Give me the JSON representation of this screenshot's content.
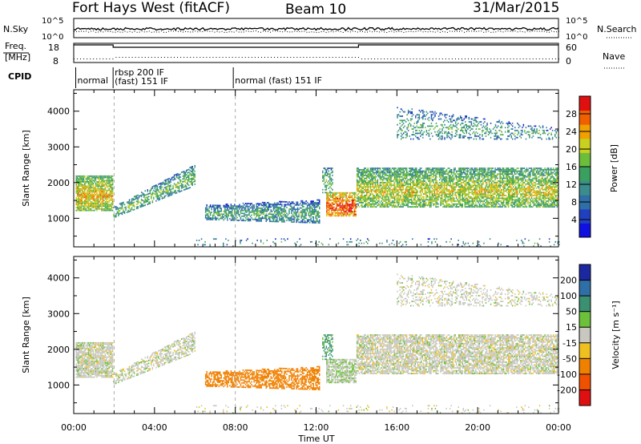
{
  "header": {
    "title": "Fort Hays West (fitACF)",
    "beam": "Beam 10",
    "date": "31/Mar/2015"
  },
  "nsky_panel": {
    "left_label": "N.Sky",
    "left_ticks": [
      "10^5",
      "10^0"
    ],
    "right_label": "N.Search",
    "right_ticks": [
      "10^5",
      "10^0"
    ]
  },
  "freq_panel": {
    "left_label_1": "Freq.",
    "left_label_2": "[MHz]",
    "left_ticks": [
      "18",
      "8"
    ],
    "right_label": "Nave",
    "right_ticks": [
      "60",
      "0"
    ],
    "freq_steps": [
      [
        0,
        18
      ],
      [
        0.1,
        18
      ],
      [
        1.95,
        18
      ],
      [
        1.95,
        16.5
      ],
      [
        14.1,
        16.5
      ],
      [
        14.1,
        18
      ],
      [
        24,
        18
      ]
    ]
  },
  "cpid_panel": {
    "label": "CPID",
    "segments": [
      {
        "start": 0.1,
        "lines": [
          "normal"
        ]
      },
      {
        "start": 1.95,
        "lines": [
          "rbsp 200 IF",
          "(fast) 151 IF"
        ]
      },
      {
        "start": 7.9,
        "lines": [
          "normal (fast)  151 IF"
        ]
      }
    ]
  },
  "chart_data": {
    "type": "heatmap",
    "x_range_hours": [
      0,
      24
    ],
    "x_tick_labels": [
      "00:00",
      "04:00",
      "08:00",
      "12:00",
      "16:00",
      "20:00",
      "00:00"
    ],
    "xlabel": "Time UT",
    "ylabel": "Slant Range [km]",
    "ylim_km": [
      200,
      4600
    ],
    "y_tick_labels": [
      "1000",
      "2000",
      "3000",
      "4000"
    ],
    "power": {
      "colorbar_label": "Power [dB]",
      "colorbar_ticks": [
        "4",
        "8",
        "12",
        "16",
        "20",
        "24",
        "28"
      ],
      "range": [
        0,
        30
      ]
    },
    "velocity": {
      "colorbar_label": "Velocity [m s⁻¹]",
      "colorbar_ticks": [
        "200",
        "100",
        "50",
        "15",
        "-15",
        "-50",
        "-100",
        "-200"
      ]
    },
    "echo_regions": [
      {
        "t0": 0.1,
        "t1": 1.95,
        "r0": 1200,
        "r1": 2200,
        "p": 14,
        "v": 0,
        "density": 0.85
      },
      {
        "t0": 1.95,
        "t1": 6.0,
        "r0": 1000,
        "r1": 1300,
        "r0_end": 1900,
        "r1_end": 2500,
        "p": 8,
        "v": 0,
        "density": 0.6
      },
      {
        "t0": 6.5,
        "t1": 12.2,
        "r0": 950,
        "r1": 1350,
        "r0_end": 850,
        "r1_end": 1500,
        "p": 6,
        "v": -80,
        "density": 0.65
      },
      {
        "t0": 12.5,
        "t1": 14.0,
        "r0": 1050,
        "r1": 1700,
        "p": 20,
        "v": 10,
        "density": 0.8
      },
      {
        "t0": 12.3,
        "t1": 12.8,
        "r0": 1700,
        "r1": 2400,
        "p": 8,
        "v": 40,
        "density": 0.5
      },
      {
        "t0": 14.0,
        "t1": 24.0,
        "r0": 1300,
        "r1": 2400,
        "p": 12,
        "v": 0,
        "density": 0.75
      },
      {
        "t0": 16.0,
        "t1": 24.0,
        "r0": 3200,
        "r1": 4100,
        "r0_end": 3200,
        "r1_end": 3500,
        "p": 6,
        "v": 0,
        "density": 0.3
      },
      {
        "t0": 6.0,
        "t1": 24.0,
        "r0": 200,
        "r1": 420,
        "p": 5,
        "v": 0,
        "density": 0.08
      }
    ]
  }
}
